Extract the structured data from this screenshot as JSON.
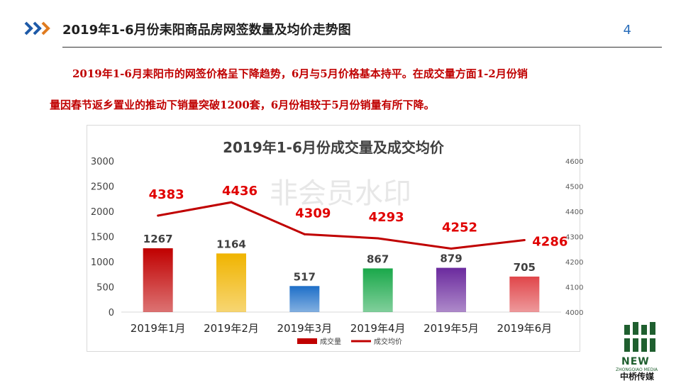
{
  "header": {
    "title": "2019年1-6月份耒阳商品房网签数量及均价走势图",
    "page_number": "4"
  },
  "description": {
    "line1": "2019年1-6月耒阳市的网签价格呈下降趋势，6月与5月价格基本持平。在成交量方面1-2月份销",
    "line2": "量因春节返乡置业的推动下销量突破1200套，6月份相较于5月份销量有所下降。"
  },
  "watermark": "非会员水印",
  "logo": {
    "new": "NEW",
    "sub": "ZHONGQIAO MEDIA",
    "cn": "中桥传媒"
  },
  "chart_data": {
    "type": "bar",
    "title": "2019年1-6月份成交量及成交均价",
    "categories": [
      "2019年1月",
      "2019年2月",
      "2019年3月",
      "2019年4月",
      "2019年5月",
      "2019年6月"
    ],
    "series": [
      {
        "name": "成交量",
        "type": "bar",
        "axis": "left",
        "values": [
          1267,
          1164,
          517,
          867,
          879,
          705
        ],
        "colors": [
          "#c00000",
          "#f0b400",
          "#1e6fc8",
          "#1aa84a",
          "#6b2a9e",
          "#e0464a"
        ]
      },
      {
        "name": "成交均价",
        "type": "line",
        "axis": "right",
        "values": [
          4383,
          4436,
          4309,
          4293,
          4252,
          4286
        ],
        "color": "#c00000"
      }
    ],
    "yleft": {
      "min": 0,
      "max": 3000,
      "ticks": [
        0,
        500,
        1000,
        1500,
        2000,
        2500,
        3000
      ]
    },
    "yright": {
      "min": 4000,
      "max": 4600,
      "ticks": [
        4000,
        4100,
        4200,
        4300,
        4400,
        4500,
        4600
      ]
    },
    "grid": false,
    "legend_position": "bottom"
  }
}
